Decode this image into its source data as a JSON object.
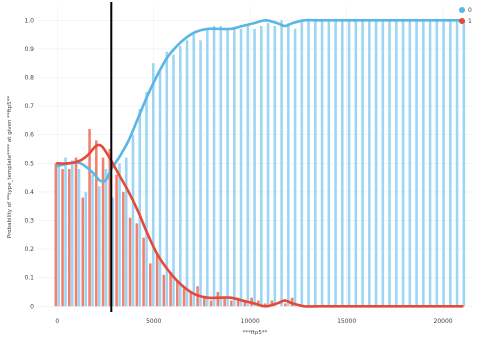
{
  "chart_data": {
    "type": "bar",
    "xlabel": "***ftp5**",
    "ylabel": "Probability of **type_template**** at given **ftp5**",
    "xlim": [
      -1000,
      21500
    ],
    "ylim": [
      -0.02,
      1.05
    ],
    "x_ticks": [
      {
        "value": 0,
        "label": "0"
      },
      {
        "value": 5000,
        "label": "5000"
      },
      {
        "value": 10000,
        "label": "10000"
      },
      {
        "value": 15000,
        "label": "15000"
      },
      {
        "value": 20000,
        "label": "20000"
      }
    ],
    "y_ticks": [
      {
        "value": 0,
        "label": "0"
      },
      {
        "value": 0.1,
        "label": "0.1"
      },
      {
        "value": 0.2,
        "label": "0.2"
      },
      {
        "value": 0.3,
        "label": "0.3"
      },
      {
        "value": 0.4,
        "label": "0.4"
      },
      {
        "value": 0.5,
        "label": "0.5"
      },
      {
        "value": 0.6,
        "label": "0.6"
      },
      {
        "value": 0.7,
        "label": "0.7"
      },
      {
        "value": 0.8,
        "label": "0.8"
      },
      {
        "value": 0.9,
        "label": "0.9"
      },
      {
        "value": 1.0,
        "label": "1.0"
      }
    ],
    "vertical_line_x": 2800,
    "bin_width": 350,
    "legend_position": "top-right",
    "series": [
      {
        "name": "0",
        "color": "#5bb6e6",
        "bar_color": "#9dd6f3",
        "bars": [
          [
            0,
            0.49
          ],
          [
            350,
            0.52
          ],
          [
            700,
            0.51
          ],
          [
            1050,
            0.48
          ],
          [
            1400,
            0.4
          ],
          [
            1750,
            0.46
          ],
          [
            2100,
            0.42
          ],
          [
            2450,
            0.48
          ],
          [
            2800,
            0.38
          ],
          [
            3150,
            0.5
          ],
          [
            3500,
            0.52
          ],
          [
            3850,
            0.6
          ],
          [
            4200,
            0.69
          ],
          [
            4550,
            0.75
          ],
          [
            4900,
            0.85
          ],
          [
            5250,
            0.82
          ],
          [
            5600,
            0.89
          ],
          [
            5950,
            0.88
          ],
          [
            6300,
            0.91
          ],
          [
            6650,
            0.93
          ],
          [
            7000,
            0.95
          ],
          [
            7350,
            0.93
          ],
          [
            7700,
            0.97
          ],
          [
            8050,
            0.98
          ],
          [
            8400,
            0.98
          ],
          [
            8750,
            0.97
          ],
          [
            9100,
            0.97
          ],
          [
            9450,
            0.97
          ],
          [
            9800,
            0.98
          ],
          [
            10150,
            0.97
          ],
          [
            10500,
            0.98
          ],
          [
            10850,
            0.99
          ],
          [
            11200,
            0.98
          ],
          [
            11550,
            1.0
          ],
          [
            11900,
            0.99
          ],
          [
            12250,
            0.97
          ],
          [
            12600,
            1.0
          ],
          [
            12950,
            1.0
          ],
          [
            13300,
            1.0
          ],
          [
            13650,
            1.0
          ],
          [
            14000,
            1.0
          ],
          [
            14350,
            1.0
          ],
          [
            14700,
            1.0
          ],
          [
            15050,
            1.0
          ],
          [
            15400,
            1.0
          ],
          [
            15750,
            1.0
          ],
          [
            16100,
            1.0
          ],
          [
            16450,
            1.0
          ],
          [
            16800,
            1.0
          ],
          [
            17150,
            1.0
          ],
          [
            17500,
            1.0
          ],
          [
            17850,
            1.0
          ],
          [
            18200,
            1.0
          ],
          [
            18550,
            1.0
          ],
          [
            18900,
            1.0
          ],
          [
            19250,
            1.0
          ],
          [
            19600,
            1.0
          ],
          [
            19950,
            1.0
          ],
          [
            20300,
            1.0
          ],
          [
            20650,
            1.0
          ],
          [
            21000,
            1.0
          ]
        ],
        "curve": [
          [
            0,
            0.49
          ],
          [
            600,
            0.5
          ],
          [
            1200,
            0.5
          ],
          [
            1800,
            0.47
          ],
          [
            2200,
            0.44
          ],
          [
            2500,
            0.44
          ],
          [
            2800,
            0.48
          ],
          [
            3200,
            0.52
          ],
          [
            3700,
            0.58
          ],
          [
            4200,
            0.66
          ],
          [
            4700,
            0.74
          ],
          [
            5200,
            0.81
          ],
          [
            5700,
            0.87
          ],
          [
            6200,
            0.91
          ],
          [
            6700,
            0.94
          ],
          [
            7200,
            0.96
          ],
          [
            7800,
            0.97
          ],
          [
            8400,
            0.97
          ],
          [
            9000,
            0.97
          ],
          [
            9600,
            0.98
          ],
          [
            10200,
            0.99
          ],
          [
            10800,
            1.0
          ],
          [
            11400,
            0.99
          ],
          [
            11800,
            0.98
          ],
          [
            12200,
            0.99
          ],
          [
            12800,
            1.0
          ],
          [
            13500,
            1.0
          ],
          [
            15000,
            1.0
          ],
          [
            17000,
            1.0
          ],
          [
            19000,
            1.0
          ],
          [
            21000,
            1.0
          ]
        ]
      },
      {
        "name": "1",
        "color": "#e4493a",
        "bar_color": "#f08070",
        "bars": [
          [
            0,
            0.5
          ],
          [
            350,
            0.48
          ],
          [
            700,
            0.48
          ],
          [
            1050,
            0.52
          ],
          [
            1400,
            0.38
          ],
          [
            1750,
            0.62
          ],
          [
            2100,
            0.58
          ],
          [
            2450,
            0.52
          ],
          [
            2800,
            0.55
          ],
          [
            3150,
            0.46
          ],
          [
            3500,
            0.4
          ],
          [
            3850,
            0.31
          ],
          [
            4200,
            0.29
          ],
          [
            4550,
            0.24
          ],
          [
            4900,
            0.15
          ],
          [
            5250,
            0.18
          ],
          [
            5600,
            0.11
          ],
          [
            5950,
            0.12
          ],
          [
            6300,
            0.09
          ],
          [
            6650,
            0.07
          ],
          [
            7000,
            0.05
          ],
          [
            7350,
            0.07
          ],
          [
            7700,
            0.03
          ],
          [
            8050,
            0.02
          ],
          [
            8400,
            0.05
          ],
          [
            8750,
            0.03
          ],
          [
            9100,
            0.02
          ],
          [
            9450,
            0.03
          ],
          [
            9800,
            0.02
          ],
          [
            10150,
            0.03
          ],
          [
            10500,
            0.02
          ],
          [
            10850,
            0.01
          ],
          [
            11200,
            0.02
          ],
          [
            11550,
            0.0
          ],
          [
            11900,
            0.01
          ],
          [
            12250,
            0.03
          ],
          [
            12600,
            0.0
          ],
          [
            12950,
            0.0
          ],
          [
            13300,
            0.0
          ],
          [
            13650,
            0.0
          ],
          [
            14000,
            0.0
          ],
          [
            14350,
            0.0
          ],
          [
            14700,
            0.0
          ],
          [
            15050,
            0.0
          ],
          [
            15400,
            0.0
          ],
          [
            15750,
            0.0
          ],
          [
            16100,
            0.0
          ],
          [
            16450,
            0.0
          ],
          [
            16800,
            0.0
          ],
          [
            17150,
            0.0
          ],
          [
            17500,
            0.0
          ],
          [
            17850,
            0.0
          ],
          [
            18200,
            0.0
          ],
          [
            18550,
            0.0
          ],
          [
            18900,
            0.0
          ],
          [
            19250,
            0.0
          ],
          [
            19600,
            0.0
          ],
          [
            19950,
            0.0
          ],
          [
            20300,
            0.0
          ],
          [
            20650,
            0.0
          ],
          [
            21000,
            0.0
          ]
        ],
        "curve": [
          [
            0,
            0.5
          ],
          [
            600,
            0.5
          ],
          [
            1200,
            0.51
          ],
          [
            1600,
            0.53
          ],
          [
            2000,
            0.56
          ],
          [
            2300,
            0.56
          ],
          [
            2700,
            0.52
          ],
          [
            3200,
            0.46
          ],
          [
            3700,
            0.4
          ],
          [
            4200,
            0.33
          ],
          [
            4700,
            0.25
          ],
          [
            5200,
            0.18
          ],
          [
            5700,
            0.13
          ],
          [
            6200,
            0.09
          ],
          [
            6700,
            0.06
          ],
          [
            7200,
            0.04
          ],
          [
            7800,
            0.03
          ],
          [
            8400,
            0.03
          ],
          [
            9000,
            0.03
          ],
          [
            9600,
            0.02
          ],
          [
            10200,
            0.01
          ],
          [
            10800,
            0.0
          ],
          [
            11400,
            0.01
          ],
          [
            11800,
            0.02
          ],
          [
            12200,
            0.01
          ],
          [
            12800,
            0.0
          ],
          [
            13500,
            0.0
          ],
          [
            15000,
            0.0
          ],
          [
            17000,
            0.0
          ],
          [
            19000,
            0.0
          ],
          [
            21000,
            0.0
          ]
        ]
      }
    ]
  }
}
